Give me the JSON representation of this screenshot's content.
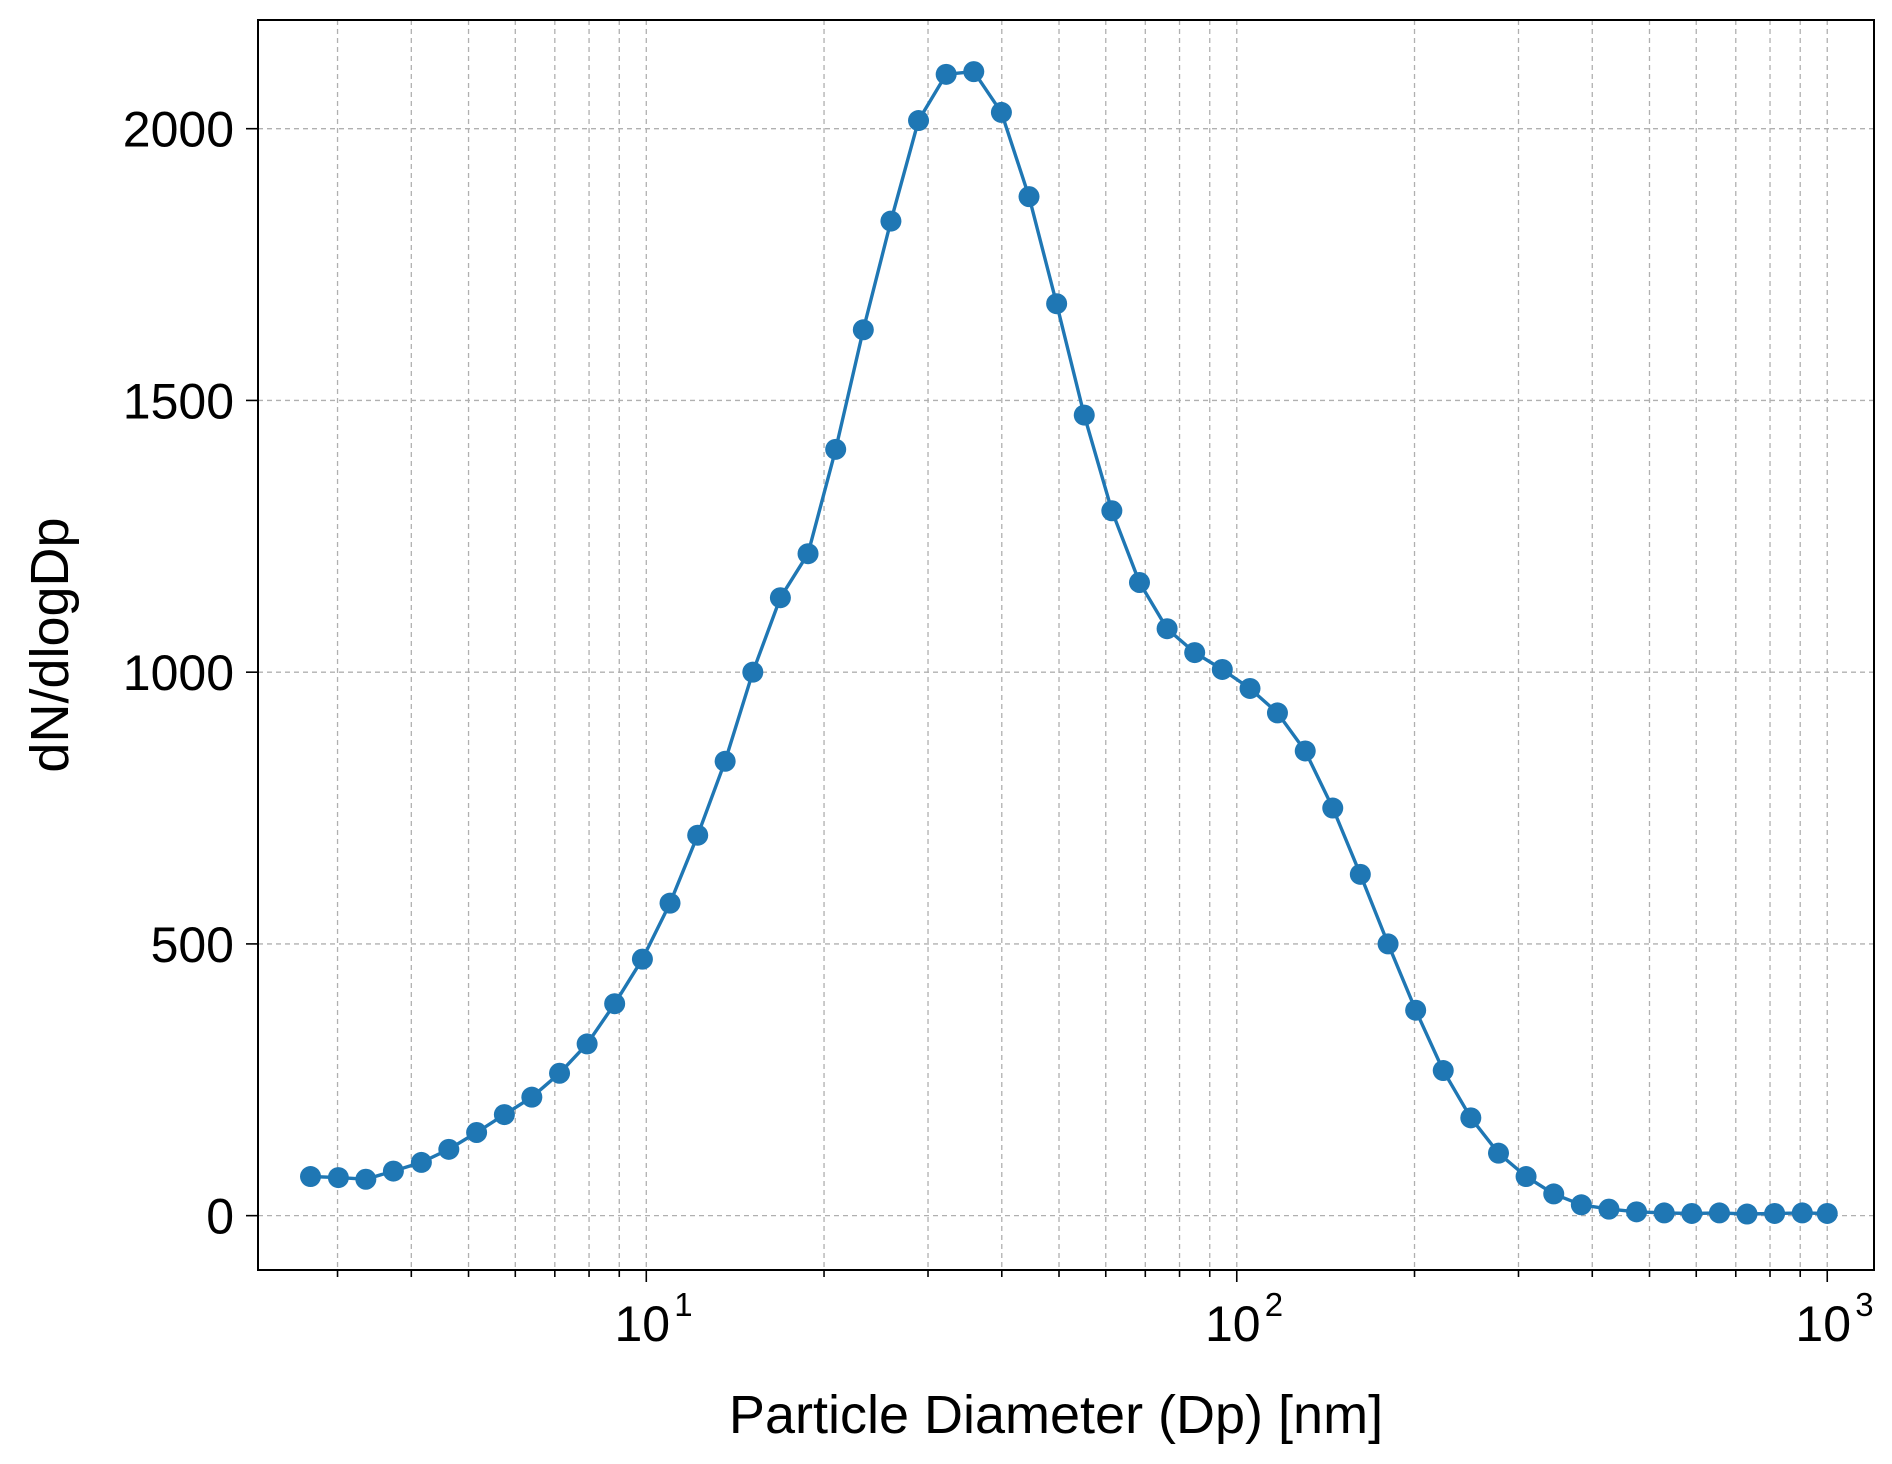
{
  "chart_data": {
    "type": "line",
    "xlabel": "Particle Diameter (Dp) [nm]",
    "ylabel": "dN/dlogDp",
    "xscale": "log",
    "xlim": [
      2.2,
      1200
    ],
    "ylim": [
      -100,
      2200
    ],
    "grid": true,
    "grid_style": "dashed, major and minor",
    "marker": "circle",
    "line_color": "#1f77b4",
    "x_tick_labels": [
      {
        "value": 10,
        "base": "10",
        "exp": "1"
      },
      {
        "value": 100,
        "base": "10",
        "exp": "2"
      },
      {
        "value": 1000,
        "base": "10",
        "exp": "3"
      }
    ],
    "y_ticks": [
      0,
      500,
      1000,
      1500,
      2000
    ],
    "y_tick_labels": [
      "0",
      "500",
      "1000",
      "1500",
      "2000"
    ],
    "series": [
      {
        "x": [
          2.7,
          3.01,
          3.35,
          3.73,
          4.16,
          4.63,
          5.16,
          5.75,
          6.4,
          7.13,
          7.94,
          8.84,
          9.85,
          10.97,
          12.22,
          13.6,
          15.15,
          16.87,
          18.79,
          20.93,
          23.31,
          25.96,
          28.91,
          32.2,
          35.86,
          39.94,
          44.48,
          49.54,
          55.17,
          61.44,
          68.43,
          76.21,
          84.87,
          94.52,
          105.3,
          117.2,
          130.6,
          145.4,
          161.9,
          180.4,
          200.9,
          223.7,
          249.1,
          277.5,
          309,
          344.2,
          383.3,
          426.9,
          475.4,
          529.5,
          589.7,
          656.7,
          731.4,
          814.5,
          907.2,
          1000
        ],
        "y": [
          72,
          70,
          67,
          82,
          98,
          122,
          153,
          186,
          218,
          262,
          316,
          390,
          472,
          575,
          700,
          836,
          1000,
          1137,
          1218,
          1410,
          1630,
          1830,
          2015,
          2100,
          2105,
          2030,
          1875,
          1678,
          1473,
          1297,
          1165,
          1080,
          1036,
          1005,
          970,
          925,
          855,
          750,
          628,
          500,
          378,
          267,
          180,
          115,
          72,
          40,
          20,
          12,
          7,
          5,
          4,
          5,
          3,
          4,
          5,
          4
        ]
      }
    ]
  }
}
